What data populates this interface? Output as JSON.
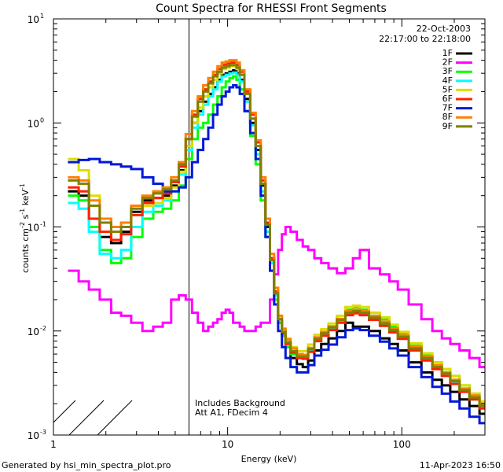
{
  "chart_data": {
    "type": "line",
    "title": "Count Spectra for RHESSI Front Segments",
    "xlabel": "Energy (keV)",
    "ylabel": "counts cm⁻² s⁻¹ keV⁻¹",
    "ylabel_parts": {
      "main": "counts cm",
      "e1": "-2",
      "s": " s",
      "e2": "-1",
      "kev": " keV",
      "e3": "-1"
    },
    "xscale": "log",
    "yscale": "log",
    "xlim": [
      1,
      300
    ],
    "ylim": [
      0.001,
      10
    ],
    "x_ticks": [
      {
        "value": 1,
        "label": "1"
      },
      {
        "value": 10,
        "label": "10"
      },
      {
        "value": 100,
        "label": "100"
      }
    ],
    "y_ticks": [
      {
        "value": 0.001,
        "base": "10",
        "exp": "-3"
      },
      {
        "value": 0.01,
        "base": "10",
        "exp": "-2"
      },
      {
        "value": 0.1,
        "base": "10",
        "exp": "-1"
      },
      {
        "value": 1,
        "base": "10",
        "exp": "0"
      },
      {
        "value": 10,
        "base": "10",
        "exp": "1"
      }
    ],
    "date": "22-Oct-2003",
    "time_range": "22:17:00 to 22:18:00",
    "shaded_region_below_kev": 6,
    "annotations": [
      "Includes Background",
      "Att A1, FDecim 4"
    ],
    "footer_left": "Generated by hsi_min_spectra_plot.pro",
    "footer_right": "11-Apr-2023 16:50",
    "x": [
      1.3,
      1.5,
      1.7,
      2.0,
      2.3,
      2.6,
      3.0,
      3.5,
      4.0,
      4.5,
      5.0,
      5.5,
      6.0,
      6.5,
      7.0,
      7.5,
      8.0,
      8.5,
      9.0,
      9.5,
      10.0,
      10.5,
      11.0,
      11.5,
      12.0,
      13.0,
      14.0,
      15.0,
      16.0,
      17.0,
      18.0,
      19.0,
      20.0,
      21.0,
      22.0,
      24.0,
      26.0,
      28.0,
      30.0,
      33.0,
      36.0,
      40.0,
      45.0,
      50.0,
      55.0,
      60.0,
      70.0,
      80.0,
      90.0,
      100.0,
      120.0,
      140.0,
      160.0,
      180.0,
      200.0,
      230.0,
      260.0,
      300.0
    ],
    "series": [
      {
        "name": "1F",
        "color": "#000000",
        "values": [
          0.22,
          0.2,
          0.12,
          0.08,
          0.07,
          0.09,
          0.14,
          0.18,
          0.19,
          0.2,
          0.25,
          0.35,
          0.6,
          1.0,
          1.3,
          1.6,
          1.9,
          2.2,
          2.6,
          2.9,
          3.0,
          3.1,
          3.2,
          3.0,
          2.6,
          1.7,
          1.0,
          0.55,
          0.25,
          0.1,
          0.05,
          0.022,
          0.012,
          0.009,
          0.007,
          0.0055,
          0.0048,
          0.0045,
          0.0052,
          0.0065,
          0.0075,
          0.0085,
          0.01,
          0.012,
          0.011,
          0.011,
          0.01,
          0.0085,
          0.0075,
          0.0065,
          0.005,
          0.004,
          0.0034,
          0.003,
          0.0026,
          0.0022,
          0.0019,
          0.0016
        ]
      },
      {
        "name": "2F",
        "color": "#ff00ff",
        "values": [
          0.038,
          0.03,
          0.025,
          0.02,
          0.015,
          0.014,
          0.012,
          0.01,
          0.011,
          0.012,
          0.02,
          0.022,
          0.02,
          0.015,
          0.012,
          0.01,
          0.011,
          0.012,
          0.013,
          0.015,
          0.016,
          0.015,
          0.012,
          0.012,
          0.011,
          0.01,
          0.01,
          0.011,
          0.012,
          0.012,
          0.02,
          0.035,
          0.06,
          0.085,
          0.1,
          0.09,
          0.075,
          0.065,
          0.06,
          0.05,
          0.045,
          0.04,
          0.036,
          0.04,
          0.05,
          0.06,
          0.04,
          0.035,
          0.03,
          0.025,
          0.018,
          0.013,
          0.01,
          0.0085,
          0.0075,
          0.0065,
          0.0055,
          0.0045
        ]
      },
      {
        "name": "3F",
        "color": "#00ff00",
        "values": [
          0.2,
          0.18,
          0.1,
          0.06,
          0.045,
          0.05,
          0.08,
          0.12,
          0.14,
          0.15,
          0.18,
          0.25,
          0.45,
          0.7,
          0.9,
          1.0,
          1.2,
          1.5,
          1.8,
          2.2,
          2.5,
          2.7,
          2.8,
          2.6,
          2.1,
          1.3,
          0.75,
          0.4,
          0.18,
          0.08,
          0.038,
          0.02,
          0.012,
          0.009,
          0.007,
          0.006,
          0.0055,
          0.0058,
          0.0068,
          0.0085,
          0.0095,
          0.011,
          0.013,
          0.016,
          0.017,
          0.016,
          0.014,
          0.013,
          0.011,
          0.0095,
          0.0075,
          0.006,
          0.005,
          0.0043,
          0.0037,
          0.003,
          0.0025,
          0.0021
        ]
      },
      {
        "name": "4F",
        "color": "#00ffff",
        "values": [
          0.17,
          0.15,
          0.09,
          0.055,
          0.05,
          0.06,
          0.1,
          0.14,
          0.16,
          0.18,
          0.22,
          0.32,
          0.55,
          0.9,
          1.2,
          1.5,
          1.8,
          2.1,
          2.5,
          2.8,
          2.9,
          3.0,
          3.05,
          2.9,
          2.5,
          1.6,
          0.95,
          0.5,
          0.22,
          0.09,
          0.045,
          0.022,
          0.013,
          0.0095,
          0.0075,
          0.0062,
          0.0056,
          0.0056,
          0.0066,
          0.0082,
          0.0092,
          0.0105,
          0.0125,
          0.0145,
          0.015,
          0.0145,
          0.013,
          0.0115,
          0.0098,
          0.0085,
          0.0066,
          0.0053,
          0.0044,
          0.0038,
          0.0032,
          0.0027,
          0.0022,
          0.0019
        ]
      },
      {
        "name": "5F",
        "color": "#dddd00",
        "values": [
          0.45,
          0.35,
          0.2,
          0.12,
          0.1,
          0.1,
          0.13,
          0.16,
          0.17,
          0.19,
          0.24,
          0.34,
          0.6,
          1.0,
          1.4,
          1.8,
          2.2,
          2.6,
          3.0,
          3.3,
          3.4,
          3.5,
          3.5,
          3.3,
          2.9,
          1.9,
          1.1,
          0.6,
          0.26,
          0.11,
          0.05,
          0.024,
          0.014,
          0.0105,
          0.0085,
          0.007,
          0.0064,
          0.0064,
          0.0074,
          0.0092,
          0.0104,
          0.0118,
          0.014,
          0.017,
          0.0175,
          0.017,
          0.015,
          0.0135,
          0.0115,
          0.0098,
          0.0076,
          0.0061,
          0.005,
          0.0043,
          0.0037,
          0.003,
          0.0025,
          0.0021
        ]
      },
      {
        "name": "6F",
        "color": "#ff2000",
        "values": [
          0.24,
          0.22,
          0.12,
          0.09,
          0.075,
          0.085,
          0.13,
          0.17,
          0.19,
          0.21,
          0.27,
          0.38,
          0.7,
          1.2,
          1.7,
          2.1,
          2.5,
          2.9,
          3.3,
          3.6,
          3.7,
          3.8,
          3.8,
          3.6,
          3.1,
          2.0,
          1.2,
          0.65,
          0.28,
          0.11,
          0.05,
          0.024,
          0.013,
          0.0095,
          0.0075,
          0.0062,
          0.0055,
          0.0054,
          0.0063,
          0.008,
          0.009,
          0.0102,
          0.012,
          0.0142,
          0.0148,
          0.0142,
          0.0128,
          0.0112,
          0.0097,
          0.0084,
          0.0065,
          0.0052,
          0.0043,
          0.0037,
          0.0031,
          0.0026,
          0.0022,
          0.0018
        ]
      },
      {
        "name": "7F",
        "color": "#0018d8",
        "values": [
          0.42,
          0.44,
          0.45,
          0.42,
          0.4,
          0.38,
          0.36,
          0.3,
          0.26,
          0.22,
          0.22,
          0.24,
          0.3,
          0.42,
          0.55,
          0.7,
          0.9,
          1.2,
          1.5,
          1.8,
          2.0,
          2.2,
          2.3,
          2.2,
          1.9,
          1.3,
          0.8,
          0.45,
          0.2,
          0.08,
          0.038,
          0.018,
          0.01,
          0.007,
          0.0055,
          0.0045,
          0.004,
          0.004,
          0.0047,
          0.0058,
          0.0066,
          0.0074,
          0.0087,
          0.0102,
          0.0106,
          0.0102,
          0.009,
          0.0079,
          0.0068,
          0.0058,
          0.0045,
          0.0036,
          0.0029,
          0.0025,
          0.0021,
          0.0018,
          0.0015,
          0.0013
        ]
      },
      {
        "name": "8F",
        "color": "#ff8000",
        "values": [
          0.3,
          0.28,
          0.18,
          0.12,
          0.1,
          0.11,
          0.16,
          0.2,
          0.22,
          0.24,
          0.3,
          0.42,
          0.78,
          1.3,
          1.8,
          2.3,
          2.7,
          3.1,
          3.5,
          3.8,
          3.9,
          4.0,
          4.0,
          3.8,
          3.2,
          2.1,
          1.25,
          0.68,
          0.3,
          0.12,
          0.055,
          0.026,
          0.014,
          0.0105,
          0.0083,
          0.0068,
          0.006,
          0.0059,
          0.0069,
          0.0087,
          0.0098,
          0.0111,
          0.0131,
          0.0155,
          0.016,
          0.0155,
          0.014,
          0.0123,
          0.0106,
          0.0091,
          0.0071,
          0.0057,
          0.0047,
          0.004,
          0.0034,
          0.0028,
          0.0024,
          0.002
        ]
      },
      {
        "name": "9F",
        "color": "#808000",
        "values": [
          0.28,
          0.26,
          0.16,
          0.11,
          0.09,
          0.1,
          0.15,
          0.19,
          0.21,
          0.23,
          0.28,
          0.4,
          0.7,
          1.15,
          1.6,
          2.0,
          2.4,
          2.8,
          3.1,
          3.4,
          3.5,
          3.6,
          3.6,
          3.4,
          2.9,
          1.9,
          1.1,
          0.6,
          0.26,
          0.105,
          0.048,
          0.023,
          0.013,
          0.0098,
          0.0078,
          0.0064,
          0.0057,
          0.0057,
          0.0067,
          0.0084,
          0.0095,
          0.0108,
          0.0128,
          0.015,
          0.0155,
          0.015,
          0.0134,
          0.0118,
          0.0102,
          0.0088,
          0.0068,
          0.0055,
          0.0045,
          0.0039,
          0.0033,
          0.0027,
          0.0023,
          0.0019
        ]
      }
    ]
  }
}
